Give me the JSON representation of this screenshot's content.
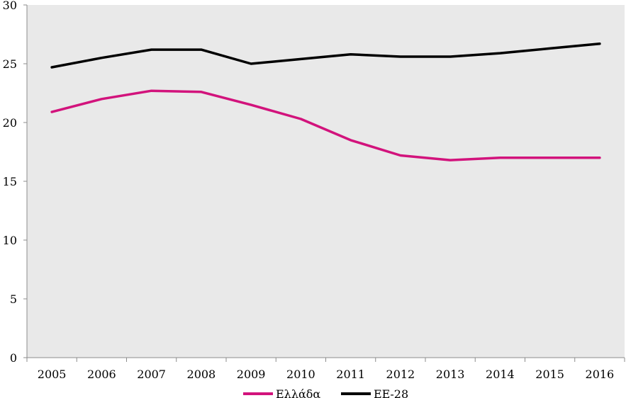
{
  "chart_data": {
    "type": "line",
    "title": "",
    "xlabel": "",
    "ylabel": "",
    "categories": [
      "2005",
      "2006",
      "2007",
      "2008",
      "2009",
      "2010",
      "2011",
      "2012",
      "2013",
      "2014",
      "2015",
      "2016"
    ],
    "ylim": [
      0,
      30
    ],
    "yticks": [
      "0",
      "5",
      "10",
      "15",
      "20",
      "25",
      "30"
    ],
    "grid": false,
    "legend_position": "bottom-center",
    "plot_background": "#e9e9e9",
    "series": [
      {
        "name": "Ελλάδα",
        "color": "#d2137c",
        "values": [
          20.9,
          22.0,
          22.7,
          22.6,
          21.5,
          20.3,
          18.5,
          17.2,
          16.8,
          17.0,
          17.0,
          17.0
        ]
      },
      {
        "name": "ΕΕ-28",
        "color": "#000000",
        "values": [
          24.7,
          25.5,
          26.2,
          26.2,
          25.0,
          25.4,
          25.8,
          25.6,
          25.6,
          25.9,
          26.3,
          26.7
        ]
      }
    ]
  }
}
